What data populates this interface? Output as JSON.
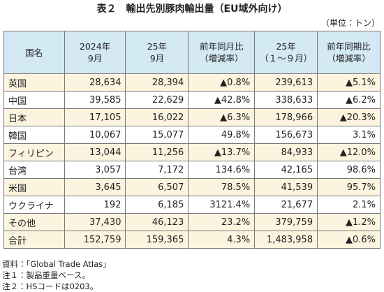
{
  "title": "表２　輸出先別豚肉輸出量（EU域外向け）",
  "unit": "（単位：トン）",
  "table": {
    "header": [
      [
        "国名"
      ],
      [
        "2024年",
        "9月"
      ],
      [
        "25年",
        "9月"
      ],
      [
        "前年同月比",
        "（増減率）"
      ],
      [
        "25年",
        "（１～９月）"
      ],
      [
        "前年同期比",
        "（増減率）"
      ]
    ],
    "rows": [
      [
        "英国",
        "28,634",
        "28,394",
        "▲0.8%",
        "239,613",
        "▲5.1%"
      ],
      [
        "中国",
        "39,585",
        "22,629",
        "▲42.8%",
        "338,633",
        "▲6.2%"
      ],
      [
        "日本",
        "17,105",
        "16,022",
        "▲6.3%",
        "178,966",
        "▲20.3%"
      ],
      [
        "韓国",
        "10,067",
        "15,077",
        "49.8%",
        "156,673",
        "3.1%"
      ],
      [
        "フィリピン",
        "13,044",
        "11,256",
        "▲13.7%",
        "84,933",
        "▲12.0%"
      ],
      [
        "台湾",
        "3,057",
        "7,172",
        "134.6%",
        "42,165",
        "98.6%"
      ],
      [
        "米国",
        "3,645",
        "6,507",
        "78.5%",
        "41,539",
        "95.7%"
      ],
      [
        "ウクライナ",
        "192",
        "6,185",
        "3121.4%",
        "21,677",
        "2.1%"
      ],
      [
        "その他",
        "37,430",
        "46,123",
        "23.2%",
        "379,759",
        "▲1.2%"
      ],
      [
        "合計",
        "152,759",
        "159,365",
        "4.3%",
        "1,483,958",
        "▲0.6%"
      ]
    ]
  },
  "notes": [
    "資料：「Global Trade Atlas」",
    "注１：製品重量ベース。",
    "注２：HSコードは0203。"
  ]
}
